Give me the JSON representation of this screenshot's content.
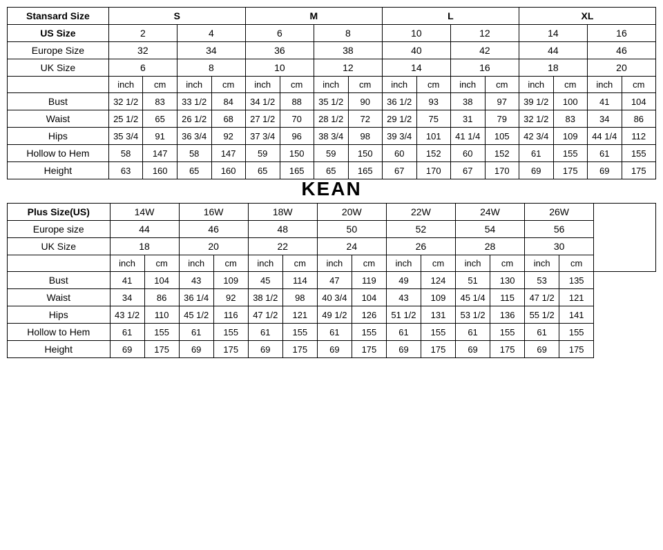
{
  "watermark": "KEAN",
  "table1": {
    "standard_label": "Stansard Size",
    "standard_sizes": [
      "S",
      "M",
      "L",
      "XL"
    ],
    "us_label": "US Size",
    "us_sizes": [
      "2",
      "4",
      "6",
      "8",
      "10",
      "12",
      "14",
      "16"
    ],
    "europe_label": "Europe Size",
    "europe_sizes": [
      "32",
      "34",
      "36",
      "38",
      "40",
      "42",
      "44",
      "46"
    ],
    "uk_label": "UK Size",
    "uk_sizes": [
      "6",
      "8",
      "10",
      "12",
      "14",
      "16",
      "18",
      "20"
    ],
    "unit_inch": "inch",
    "unit_cm": "cm",
    "rows": [
      {
        "label": "Bust",
        "v": [
          "32 1/2",
          "83",
          "33 1/2",
          "84",
          "34 1/2",
          "88",
          "35 1/2",
          "90",
          "36 1/2",
          "93",
          "38",
          "97",
          "39 1/2",
          "100",
          "41",
          "104"
        ]
      },
      {
        "label": "Waist",
        "v": [
          "25 1/2",
          "65",
          "26 1/2",
          "68",
          "27 1/2",
          "70",
          "28 1/2",
          "72",
          "29 1/2",
          "75",
          "31",
          "79",
          "32 1/2",
          "83",
          "34",
          "86"
        ]
      },
      {
        "label": "Hips",
        "v": [
          "35 3/4",
          "91",
          "36 3/4",
          "92",
          "37 3/4",
          "96",
          "38 3/4",
          "98",
          "39 3/4",
          "101",
          "41 1/4",
          "105",
          "42 3/4",
          "109",
          "44 1/4",
          "112"
        ]
      },
      {
        "label": "Hollow to Hem",
        "v": [
          "58",
          "147",
          "58",
          "147",
          "59",
          "150",
          "59",
          "150",
          "60",
          "152",
          "60",
          "152",
          "61",
          "155",
          "61",
          "155"
        ]
      },
      {
        "label": "Height",
        "v": [
          "63",
          "160",
          "65",
          "160",
          "65",
          "165",
          "65",
          "165",
          "67",
          "170",
          "67",
          "170",
          "69",
          "175",
          "69",
          "175"
        ]
      }
    ]
  },
  "table2": {
    "plus_label": "Plus Size(US)",
    "plus_sizes": [
      "14W",
      "16W",
      "18W",
      "20W",
      "22W",
      "24W",
      "26W"
    ],
    "europe_label": "Europe size",
    "europe_sizes": [
      "44",
      "46",
      "48",
      "50",
      "52",
      "54",
      "56"
    ],
    "uk_label": "UK Size",
    "uk_sizes": [
      "18",
      "20",
      "22",
      "24",
      "26",
      "28",
      "30"
    ],
    "unit_inch": "inch",
    "unit_cm": "cm",
    "rows": [
      {
        "label": "Bust",
        "v": [
          "41",
          "104",
          "43",
          "109",
          "45",
          "114",
          "47",
          "119",
          "49",
          "124",
          "51",
          "130",
          "53",
          "135"
        ]
      },
      {
        "label": "Waist",
        "v": [
          "34",
          "86",
          "36 1/4",
          "92",
          "38 1/2",
          "98",
          "40 3/4",
          "104",
          "43",
          "109",
          "45 1/4",
          "115",
          "47 1/2",
          "121"
        ]
      },
      {
        "label": "Hips",
        "v": [
          "43 1/2",
          "110",
          "45 1/2",
          "116",
          "47 1/2",
          "121",
          "49 1/2",
          "126",
          "51 1/2",
          "131",
          "53 1/2",
          "136",
          "55 1/2",
          "141"
        ]
      },
      {
        "label": "Hollow to Hem",
        "v": [
          "61",
          "155",
          "61",
          "155",
          "61",
          "155",
          "61",
          "155",
          "61",
          "155",
          "61",
          "155",
          "61",
          "155"
        ]
      },
      {
        "label": "Height",
        "v": [
          "69",
          "175",
          "69",
          "175",
          "69",
          "175",
          "69",
          "175",
          "69",
          "175",
          "69",
          "175",
          "69",
          "175"
        ]
      }
    ]
  },
  "styling": {
    "border_color": "#000000",
    "background": "#ffffff",
    "font_family": "Arial",
    "header_fontsize": 14,
    "cell_fontsize": 14,
    "unit_fontsize": 13,
    "watermark_fontsize": 28
  }
}
